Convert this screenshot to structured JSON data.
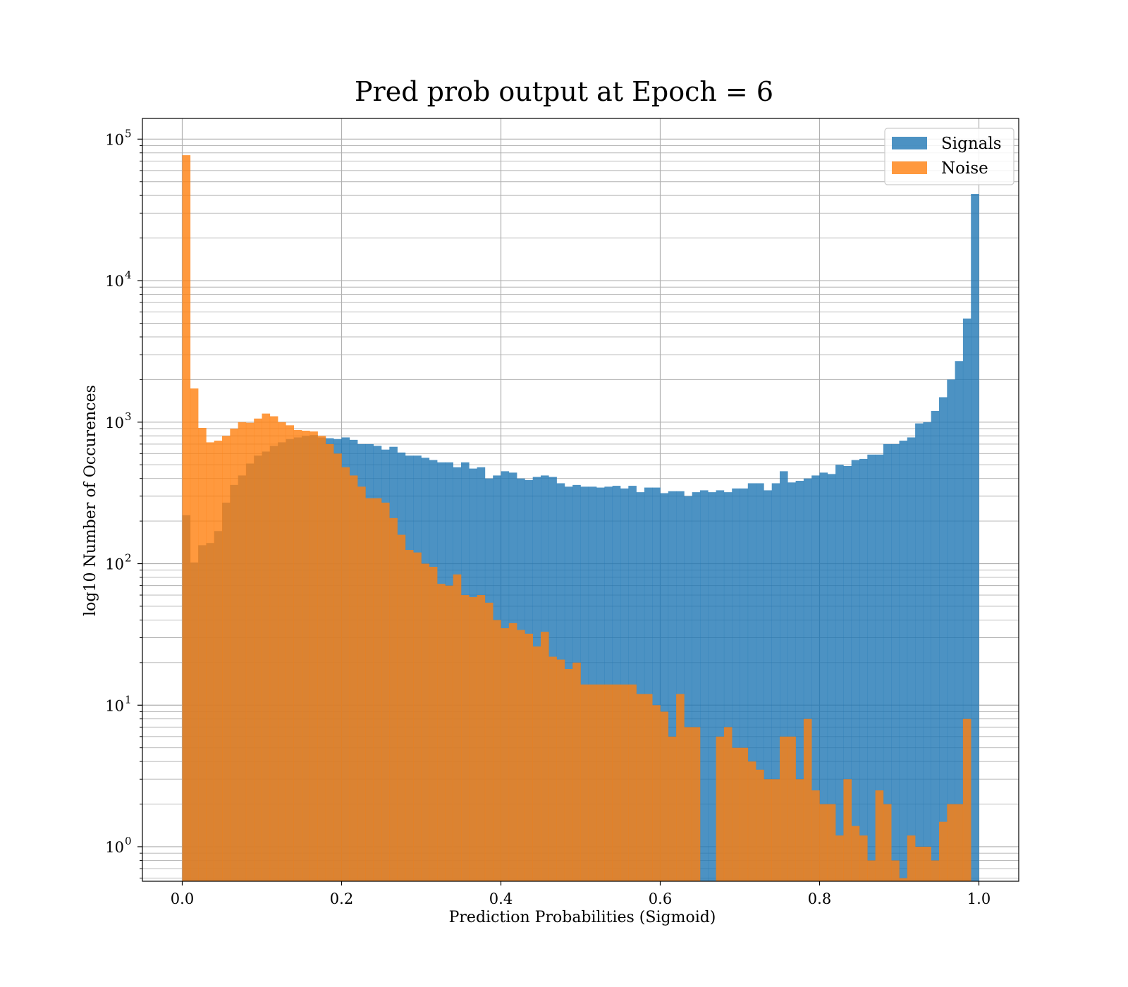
{
  "chart_data": {
    "type": "bar",
    "title": "Pred prob output at Epoch = 6",
    "xlabel": "Prediction Probabilities (Sigmoid)",
    "ylabel": "log10 Number of Occurences",
    "xlim": [
      -0.05,
      1.05
    ],
    "ylim": [
      0.57,
      140000
    ],
    "yscale": "log",
    "grid": true,
    "legend_position": "top-right",
    "bins": 100,
    "bin_range": [
      0,
      1
    ],
    "xticks": [
      {
        "value": 0.0,
        "label": "0.0"
      },
      {
        "value": 0.2,
        "label": "0.2"
      },
      {
        "value": 0.4,
        "label": "0.4"
      },
      {
        "value": 0.6,
        "label": "0.6"
      },
      {
        "value": 0.8,
        "label": "0.8"
      },
      {
        "value": 1.0,
        "label": "1.0"
      }
    ],
    "yticks": [
      {
        "value": 1,
        "base": "10",
        "exp": "0"
      },
      {
        "value": 10,
        "base": "10",
        "exp": "1"
      },
      {
        "value": 100,
        "base": "10",
        "exp": "2"
      },
      {
        "value": 1000,
        "base": "10",
        "exp": "3"
      },
      {
        "value": 10000,
        "base": "10",
        "exp": "4"
      },
      {
        "value": 100000,
        "base": "10",
        "exp": "5"
      }
    ],
    "series": [
      {
        "name": "Signals",
        "color": "#1f77b4",
        "values": [
          220,
          102,
          135,
          140,
          170,
          270,
          360,
          420,
          510,
          580,
          620,
          680,
          720,
          760,
          780,
          800,
          810,
          780,
          770,
          760,
          780,
          750,
          700,
          700,
          680,
          640,
          670,
          610,
          580,
          580,
          560,
          540,
          520,
          520,
          480,
          520,
          470,
          480,
          400,
          420,
          450,
          440,
          400,
          390,
          410,
          420,
          410,
          370,
          350,
          360,
          350,
          350,
          345,
          350,
          355,
          340,
          355,
          320,
          345,
          345,
          315,
          325,
          325,
          300,
          320,
          330,
          320,
          330,
          320,
          340,
          340,
          370,
          370,
          330,
          370,
          450,
          375,
          385,
          400,
          420,
          440,
          430,
          500,
          490,
          540,
          550,
          590,
          590,
          700,
          700,
          740,
          780,
          980,
          1000,
          1200,
          1500,
          2000,
          2700,
          5400,
          41000
        ]
      },
      {
        "name": "Noise",
        "color": "#ff7f0e",
        "values": [
          77000,
          1730,
          910,
          720,
          740,
          800,
          900,
          1000,
          990,
          1060,
          1150,
          1100,
          1000,
          950,
          880,
          870,
          860,
          800,
          700,
          600,
          480,
          420,
          350,
          290,
          290,
          270,
          210,
          160,
          125,
          120,
          100,
          95,
          72,
          70,
          84,
          60,
          58,
          60,
          53,
          40,
          35,
          38,
          34,
          32,
          26,
          33,
          22,
          21,
          18,
          20,
          14,
          14,
          14,
          14,
          14,
          14,
          14,
          12,
          12,
          10,
          9,
          6,
          12,
          7,
          7,
          0,
          0,
          6,
          7,
          5,
          5,
          4,
          3.5,
          3,
          3,
          6,
          6,
          3,
          8,
          2.5,
          2,
          2,
          1.2,
          3,
          1.4,
          1.2,
          0.8,
          2.5,
          2,
          0.8,
          0.6,
          1.2,
          1,
          1,
          0.8,
          1.5,
          2,
          2,
          8,
          0
        ]
      }
    ]
  }
}
